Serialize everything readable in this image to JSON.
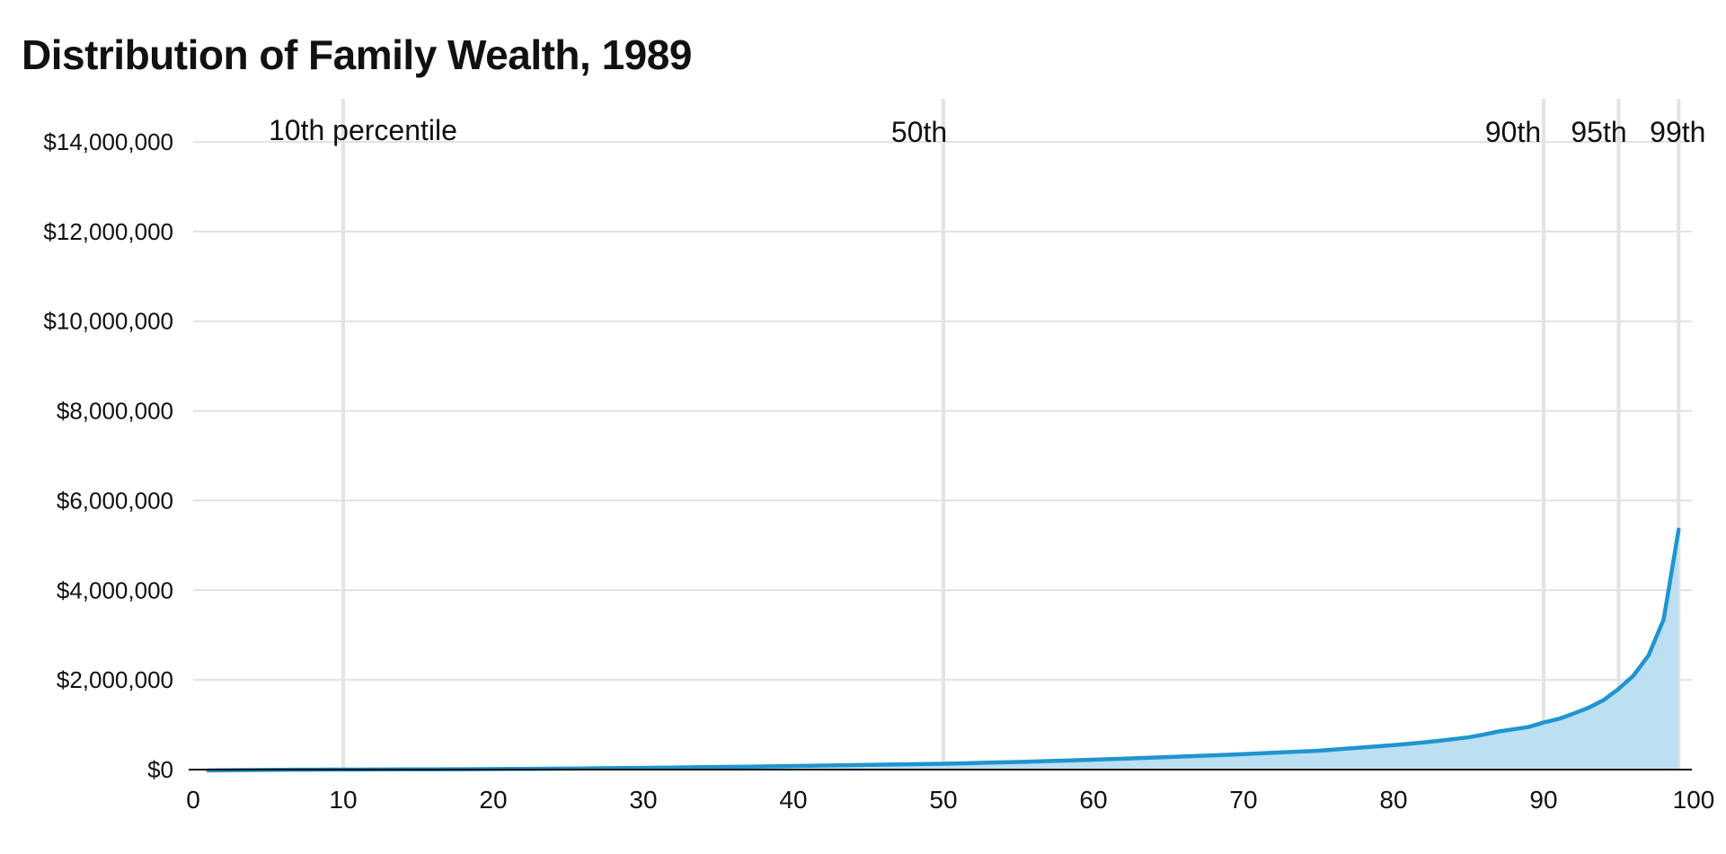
{
  "chart_data": {
    "type": "area",
    "title": "Distribution of Family Wealth, 1989",
    "xlabel": "",
    "ylabel": "",
    "xlim": [
      0,
      100
    ],
    "ylim": [
      0,
      14000000
    ],
    "grid": true,
    "legend": "none",
    "y_ticks": [
      {
        "value": 0,
        "label": "$0"
      },
      {
        "value": 2000000,
        "label": "$2,000,000"
      },
      {
        "value": 4000000,
        "label": "$4,000,000"
      },
      {
        "value": 6000000,
        "label": "$6,000,000"
      },
      {
        "value": 8000000,
        "label": "$8,000,000"
      },
      {
        "value": 10000000,
        "label": "$10,000,000"
      },
      {
        "value": 12000000,
        "label": "$12,000,000"
      },
      {
        "value": 14000000,
        "label": "$14,000,000"
      }
    ],
    "x_ticks": [
      {
        "value": 0,
        "label": "0"
      },
      {
        "value": 10,
        "label": "10"
      },
      {
        "value": 20,
        "label": "20"
      },
      {
        "value": 30,
        "label": "30"
      },
      {
        "value": 40,
        "label": "40"
      },
      {
        "value": 50,
        "label": "50"
      },
      {
        "value": 60,
        "label": "60"
      },
      {
        "value": 70,
        "label": "70"
      },
      {
        "value": 80,
        "label": "80"
      },
      {
        "value": 90,
        "label": "90"
      },
      {
        "value": 100,
        "label": "100"
      }
    ],
    "percentile_markers": [
      {
        "x": 10,
        "label": "10th percentile"
      },
      {
        "x": 50,
        "label": "50th"
      },
      {
        "x": 90,
        "label": "90th"
      },
      {
        "x": 95,
        "label": "95th"
      },
      {
        "x": 99,
        "label": "99th"
      }
    ],
    "colors": {
      "line": "#1f95cf",
      "fill": "#bcdff2",
      "grid": "#d9d9d9",
      "marker": "#e3e3e3",
      "axis": "#111111"
    },
    "series": [
      {
        "x": [
          1,
          2,
          3,
          4,
          5,
          6,
          7,
          8,
          9,
          10,
          11,
          12,
          13,
          14,
          15,
          16,
          17,
          18,
          19,
          20,
          21,
          22,
          23,
          24,
          25,
          26,
          27,
          28,
          29,
          30,
          31,
          32,
          33,
          34,
          35,
          36,
          37,
          38,
          39,
          40,
          41,
          42,
          43,
          44,
          45,
          46,
          47,
          48,
          49,
          50,
          51,
          52,
          53,
          54,
          55,
          56,
          57,
          58,
          59,
          60,
          61,
          62,
          63,
          64,
          65,
          66,
          67,
          68,
          69,
          70,
          71,
          72,
          73,
          74,
          75,
          76,
          77,
          78,
          79,
          80,
          81,
          82,
          83,
          84,
          85,
          86,
          87,
          88,
          89,
          90,
          91,
          92,
          93,
          94,
          95,
          96,
          97,
          98,
          99
        ],
        "values": [
          -20000,
          -15000,
          -12000,
          -10000,
          -8000,
          -5000,
          -3000,
          -2000,
          -1000,
          0,
          1000,
          2000,
          3000,
          4000,
          5000,
          6000,
          7000,
          8000,
          10000,
          12000,
          14000,
          16000,
          18000,
          20000,
          23000,
          26000,
          29000,
          32000,
          35000,
          38000,
          42000,
          46000,
          50000,
          54000,
          58000,
          62000,
          66000,
          70000,
          75000,
          80000,
          85000,
          90000,
          95000,
          100000,
          105000,
          110000,
          115000,
          120000,
          125000,
          130000,
          138000,
          146000,
          154000,
          162000,
          170000,
          180000,
          190000,
          200000,
          210000,
          220000,
          232000,
          244000,
          256000,
          268000,
          280000,
          292000,
          305000,
          318000,
          331000,
          345000,
          360000,
          375000,
          390000,
          405000,
          420000,
          445000,
          470000,
          495000,
          520000,
          545000,
          575000,
          605000,
          640000,
          680000,
          720000,
          780000,
          850000,
          900000,
          950000,
          1050000,
          1130000,
          1250000,
          1380000,
          1550000,
          1800000,
          2100000,
          2550000,
          3350000,
          5350000
        ]
      }
    ]
  }
}
